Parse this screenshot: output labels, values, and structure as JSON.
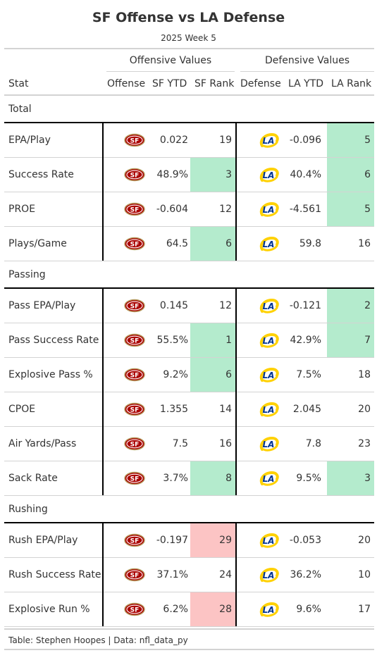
{
  "title": "SF Offense vs LA Defense",
  "subtitle": "2025 Week 5",
  "spanners": {
    "offense": "Offensive Values",
    "defense": "Defensive Values"
  },
  "columns": {
    "stat": "Stat",
    "offense": "Offense",
    "sf_ytd": "SF YTD",
    "sf_rank": "SF Rank",
    "defense": "Defense",
    "la_ytd": "LA YTD",
    "la_rank": "LA Rank"
  },
  "colors": {
    "highlight_good": "#b4ebcd",
    "highlight_bad": "#fcc4c4",
    "sf_red": "#aa0000",
    "sf_gold": "#b3995d",
    "la_blue": "#003594",
    "la_yellow": "#ffd100"
  },
  "groups": [
    {
      "label": "Total",
      "rows": [
        {
          "stat": "EPA/Play",
          "offense_logo": "49ers-logo",
          "sf_ytd": "0.022",
          "sf_rank": "19",
          "sf_rank_hl": "",
          "defense_logo": "rams-logo",
          "la_ytd": "-0.096",
          "la_rank": "5",
          "la_rank_hl": "good"
        },
        {
          "stat": "Success Rate",
          "offense_logo": "49ers-logo",
          "sf_ytd": "48.9%",
          "sf_rank": "3",
          "sf_rank_hl": "good",
          "defense_logo": "rams-logo",
          "la_ytd": "40.4%",
          "la_rank": "6",
          "la_rank_hl": "good"
        },
        {
          "stat": "PROE",
          "offense_logo": "49ers-logo",
          "sf_ytd": "-0.604",
          "sf_rank": "12",
          "sf_rank_hl": "",
          "defense_logo": "rams-logo",
          "la_ytd": "-4.561",
          "la_rank": "5",
          "la_rank_hl": "good"
        },
        {
          "stat": "Plays/Game",
          "offense_logo": "49ers-logo",
          "sf_ytd": "64.5",
          "sf_rank": "6",
          "sf_rank_hl": "good",
          "defense_logo": "rams-logo",
          "la_ytd": "59.8",
          "la_rank": "16",
          "la_rank_hl": ""
        }
      ]
    },
    {
      "label": "Passing",
      "rows": [
        {
          "stat": "Pass EPA/Play",
          "offense_logo": "49ers-logo",
          "sf_ytd": "0.145",
          "sf_rank": "12",
          "sf_rank_hl": "",
          "defense_logo": "rams-logo",
          "la_ytd": "-0.121",
          "la_rank": "2",
          "la_rank_hl": "good"
        },
        {
          "stat": "Pass Success Rate",
          "offense_logo": "49ers-logo",
          "sf_ytd": "55.5%",
          "sf_rank": "1",
          "sf_rank_hl": "good",
          "defense_logo": "rams-logo",
          "la_ytd": "42.9%",
          "la_rank": "7",
          "la_rank_hl": "good"
        },
        {
          "stat": "Explosive Pass %",
          "offense_logo": "49ers-logo",
          "sf_ytd": "9.2%",
          "sf_rank": "6",
          "sf_rank_hl": "good",
          "defense_logo": "rams-logo",
          "la_ytd": "7.5%",
          "la_rank": "18",
          "la_rank_hl": ""
        },
        {
          "stat": "CPOE",
          "offense_logo": "49ers-logo",
          "sf_ytd": "1.355",
          "sf_rank": "14",
          "sf_rank_hl": "",
          "defense_logo": "rams-logo",
          "la_ytd": "2.045",
          "la_rank": "20",
          "la_rank_hl": ""
        },
        {
          "stat": "Air Yards/Pass",
          "offense_logo": "49ers-logo",
          "sf_ytd": "7.5",
          "sf_rank": "16",
          "sf_rank_hl": "",
          "defense_logo": "rams-logo",
          "la_ytd": "7.8",
          "la_rank": "23",
          "la_rank_hl": ""
        },
        {
          "stat": "Sack Rate",
          "offense_logo": "49ers-logo",
          "sf_ytd": "3.7%",
          "sf_rank": "8",
          "sf_rank_hl": "good",
          "defense_logo": "rams-logo",
          "la_ytd": "9.5%",
          "la_rank": "3",
          "la_rank_hl": "good"
        }
      ]
    },
    {
      "label": "Rushing",
      "rows": [
        {
          "stat": "Rush EPA/Play",
          "offense_logo": "49ers-logo",
          "sf_ytd": "-0.197",
          "sf_rank": "29",
          "sf_rank_hl": "bad",
          "defense_logo": "rams-logo",
          "la_ytd": "-0.053",
          "la_rank": "20",
          "la_rank_hl": ""
        },
        {
          "stat": "Rush Success Rate",
          "offense_logo": "49ers-logo",
          "sf_ytd": "37.1%",
          "sf_rank": "24",
          "sf_rank_hl": "",
          "defense_logo": "rams-logo",
          "la_ytd": "36.2%",
          "la_rank": "10",
          "la_rank_hl": ""
        },
        {
          "stat": "Explosive Run %",
          "offense_logo": "49ers-logo",
          "sf_ytd": "6.2%",
          "sf_rank": "28",
          "sf_rank_hl": "bad",
          "defense_logo": "rams-logo",
          "la_ytd": "9.6%",
          "la_rank": "17",
          "la_rank_hl": ""
        }
      ]
    }
  ],
  "source_note": "Table: Stephen Hoopes | Data: nfl_data_py"
}
